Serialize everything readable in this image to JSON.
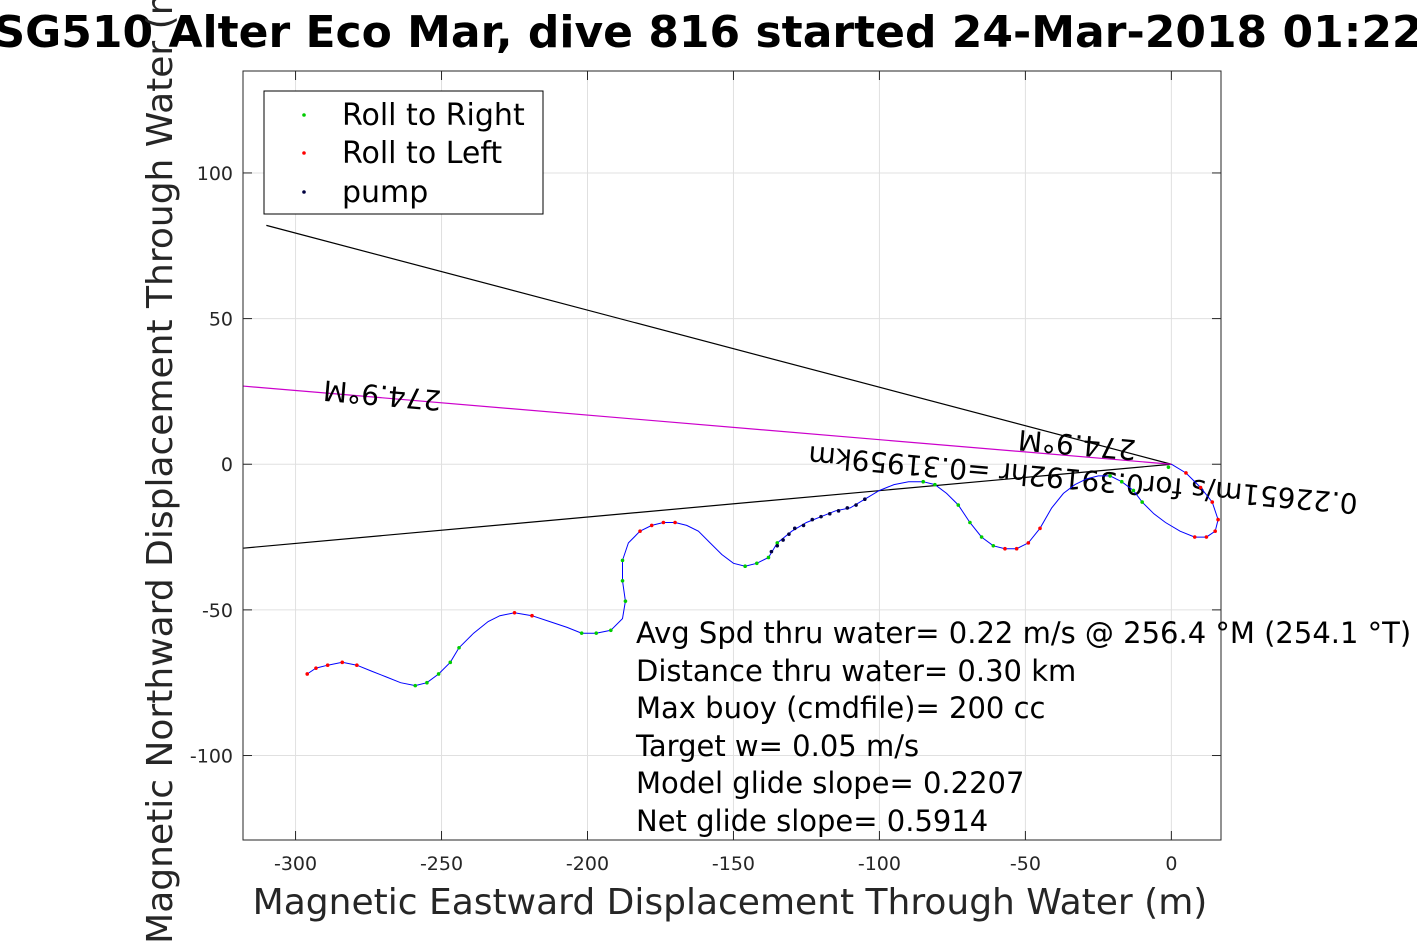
{
  "chart_data": {
    "type": "scatter",
    "title": "SG510 Alter Eco Mar, dive 816 started 24-Mar-2018 01:22",
    "xlabel": "Magnetic Eastward Displacement Through Water (m)",
    "ylabel": "Magnetic Northward Displacement Through Water (m)",
    "xlim": [
      -318,
      17
    ],
    "ylim": [
      -129,
      135
    ],
    "xticks": [
      -300,
      -250,
      -200,
      -150,
      -100,
      -50,
      0
    ],
    "yticks": [
      100,
      50,
      0,
      -50,
      -100
    ],
    "grid": true,
    "legend_position": "top-left",
    "legend": [
      {
        "name": "Roll to Right",
        "color": "#00cc00"
      },
      {
        "name": "Roll to Left",
        "color": "#ff0000"
      },
      {
        "name": "pump",
        "color": "#000040"
      }
    ],
    "track": {
      "color": "#0000ff",
      "points": [
        [
          0,
          0
        ],
        [
          5,
          -3
        ],
        [
          10,
          -8
        ],
        [
          14,
          -13
        ],
        [
          16,
          -19
        ],
        [
          15,
          -23
        ],
        [
          12,
          -25
        ],
        [
          8,
          -25
        ],
        [
          3,
          -23
        ],
        [
          -2,
          -20
        ],
        [
          -6,
          -17
        ],
        [
          -10,
          -13
        ],
        [
          -13,
          -9
        ],
        [
          -17,
          -6
        ],
        [
          -21,
          -4
        ],
        [
          -25,
          -4
        ],
        [
          -29,
          -5
        ],
        [
          -33,
          -7
        ],
        [
          -37,
          -10
        ],
        [
          -41,
          -15
        ],
        [
          -45,
          -22
        ],
        [
          -49,
          -27
        ],
        [
          -53,
          -29
        ],
        [
          -57,
          -29
        ],
        [
          -61,
          -28
        ],
        [
          -65,
          -25
        ],
        [
          -69,
          -20
        ],
        [
          -73,
          -14
        ],
        [
          -77,
          -10
        ],
        [
          -81,
          -7
        ],
        [
          -85,
          -6
        ],
        [
          -90,
          -6
        ],
        [
          -95,
          -7
        ],
        [
          -100,
          -9
        ],
        [
          -105,
          -12
        ],
        [
          -110,
          -15
        ],
        [
          -115,
          -16
        ],
        [
          -120,
          -18
        ],
        [
          -125,
          -20
        ],
        [
          -130,
          -23
        ],
        [
          -135,
          -27
        ],
        [
          -138,
          -32
        ],
        [
          -142,
          -34
        ],
        [
          -146,
          -35
        ],
        [
          -150,
          -34
        ],
        [
          -154,
          -31
        ],
        [
          -158,
          -27
        ],
        [
          -162,
          -23
        ],
        [
          -166,
          -21
        ],
        [
          -170,
          -20
        ],
        [
          -174,
          -20
        ],
        [
          -178,
          -21
        ],
        [
          -182,
          -23
        ],
        [
          -186,
          -27
        ],
        [
          -188,
          -33
        ],
        [
          -188,
          -40
        ],
        [
          -187,
          -47
        ],
        [
          -188,
          -53
        ],
        [
          -192,
          -57
        ],
        [
          -197,
          -58
        ],
        [
          -202,
          -58
        ],
        [
          -207,
          -56
        ],
        [
          -213,
          -54
        ],
        [
          -219,
          -52
        ],
        [
          -225,
          -51
        ],
        [
          -230,
          -52
        ],
        [
          -234,
          -54
        ],
        [
          -239,
          -58
        ],
        [
          -244,
          -63
        ],
        [
          -247,
          -68
        ],
        [
          -251,
          -72
        ],
        [
          -255,
          -75
        ],
        [
          -259,
          -76
        ],
        [
          -264,
          -75
        ],
        [
          -269,
          -73
        ],
        [
          -274,
          -71
        ],
        [
          -279,
          -69
        ],
        [
          -284,
          -68
        ],
        [
          -289,
          -69
        ],
        [
          -293,
          -70
        ],
        [
          -296,
          -72
        ]
      ]
    },
    "roll_right": [
      [
        -1,
        -1
      ],
      [
        -10,
        -13
      ],
      [
        -13,
        -9
      ],
      [
        -17,
        -6
      ],
      [
        -21,
        -4
      ],
      [
        -61,
        -28
      ],
      [
        -65,
        -25
      ],
      [
        -69,
        -20
      ],
      [
        -73,
        -14
      ],
      [
        -81,
        -7
      ],
      [
        -85,
        -6
      ],
      [
        -135,
        -27
      ],
      [
        -138,
        -32
      ],
      [
        -142,
        -34
      ],
      [
        -146,
        -35
      ],
      [
        -187,
        -47
      ],
      [
        -188,
        -40
      ],
      [
        -188,
        -33
      ],
      [
        -192,
        -57
      ],
      [
        -197,
        -58
      ],
      [
        -202,
        -58
      ],
      [
        -244,
        -63
      ],
      [
        -247,
        -68
      ],
      [
        -251,
        -72
      ],
      [
        -255,
        -75
      ],
      [
        -259,
        -76
      ]
    ],
    "roll_left": [
      [
        5,
        -3
      ],
      [
        10,
        -8
      ],
      [
        14,
        -13
      ],
      [
        16,
        -19
      ],
      [
        15,
        -23
      ],
      [
        12,
        -25
      ],
      [
        8,
        -25
      ],
      [
        -45,
        -22
      ],
      [
        -49,
        -27
      ],
      [
        -53,
        -29
      ],
      [
        -57,
        -29
      ],
      [
        -170,
        -20
      ],
      [
        -174,
        -20
      ],
      [
        -178,
        -21
      ],
      [
        -182,
        -23
      ],
      [
        -219,
        -52
      ],
      [
        -225,
        -51
      ],
      [
        -279,
        -69
      ],
      [
        -284,
        -68
      ],
      [
        -289,
        -69
      ],
      [
        -293,
        -70
      ],
      [
        -296,
        -72
      ]
    ],
    "pump": [
      [
        -105,
        -12
      ],
      [
        -108,
        -14
      ],
      [
        -111,
        -15
      ],
      [
        -114,
        -16
      ],
      [
        -117,
        -17
      ],
      [
        -120,
        -18
      ],
      [
        -123,
        -19
      ],
      [
        -126,
        -21
      ],
      [
        -129,
        -22
      ],
      [
        -131,
        -24
      ],
      [
        -133,
        -26
      ],
      [
        -135,
        -28
      ],
      [
        -137,
        -30
      ]
    ],
    "reference_lines": [
      {
        "from": [
          0,
          0
        ],
        "to": [
          -310,
          82
        ],
        "color": "#000000"
      },
      {
        "from": [
          0,
          0
        ],
        "to": [
          -320,
          -29
        ],
        "color": "#000000"
      },
      {
        "from": [
          0,
          0
        ],
        "to": [
          -320,
          27
        ],
        "color": "#cc00cc"
      }
    ],
    "rotated_labels": [
      {
        "text": "274.9°M",
        "at": [
          -270,
          27
        ],
        "angle": 185
      },
      {
        "text": "274.9°M",
        "at": [
          -32,
          10
        ],
        "angle": 185
      },
      {
        "text": "0.22651m/s for0.39192hr =0.31959km",
        "at": [
          -30,
          -2
        ],
        "angle": 185
      }
    ],
    "annotations": [
      "Avg Spd thru water=  0.22 m/s @ 256.4 °M (254.1 °T)",
      "Distance thru water=  0.30 km",
      "Max buoy (cmdfile)= 200 cc",
      "Target w= 0.05 m/s",
      "Model glide slope= 0.2207",
      "Net glide slope= 0.5914"
    ]
  }
}
